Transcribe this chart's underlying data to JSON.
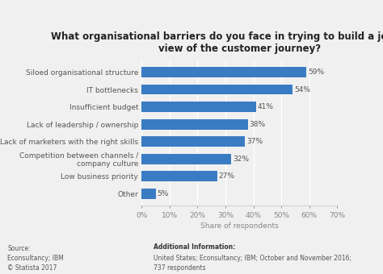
{
  "title": "What organisational barriers do you face in trying to build a joined-up\nview of the customer journey?",
  "categories": [
    "Other",
    "Low business priority",
    "Competition between channels /\ncompany culture",
    "Lack of marketers with the right skills",
    "Lack of leadership / ownership",
    "Insufficient budget",
    "IT bottlenecks",
    "Siloed organisational structure"
  ],
  "values": [
    5,
    27,
    32,
    37,
    38,
    41,
    54,
    59
  ],
  "bar_color": "#3a7cc3",
  "xlabel": "Share of respondents",
  "xlim": [
    0,
    70
  ],
  "xticks": [
    0,
    10,
    20,
    30,
    40,
    50,
    60,
    70
  ],
  "xticklabels": [
    "0%",
    "10%",
    "20%",
    "30%",
    "40%",
    "50%",
    "60%",
    "70%"
  ],
  "source_text": "Source:\nEconsultancy; IBM\n© Statista 2017",
  "additional_info_title": "Additional Information:",
  "additional_info_body": "United States; Econsultancy; IBM; October and November 2016;\n737 respondents",
  "title_fontsize": 8.5,
  "label_fontsize": 6.5,
  "tick_fontsize": 6.5,
  "annotation_fontsize": 6.5,
  "footer_fontsize": 5.5,
  "background_color": "#f0f0f0",
  "bar_height": 0.6
}
